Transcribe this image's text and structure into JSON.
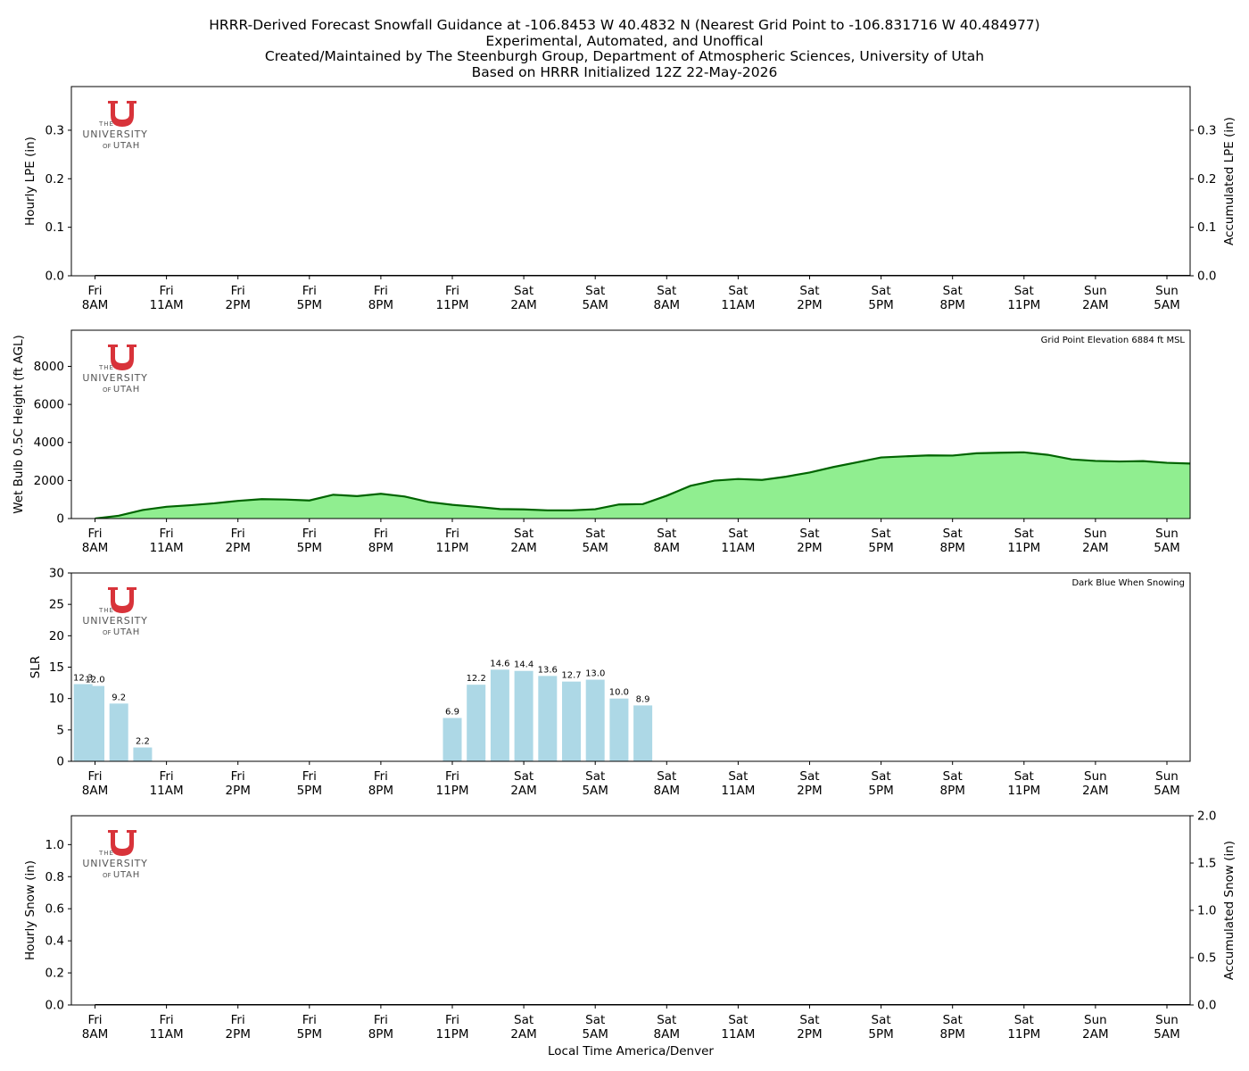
{
  "header": {
    "title_lines": [
      "HRRR-Derived Forecast Snowfall Guidance at -106.8453 W 40.4832 N (Nearest Grid Point to -106.831716 W 40.484977)",
      "Experimental, Automated, and Unoffical",
      "Created/Maintained by The Steenburgh Group, Department of Atmospheric Sciences, University of Utah",
      "Based on HRRR Initialized 12Z 22-May-2026"
    ]
  },
  "logo": {
    "line1": "THE",
    "line2": "UNIVERSITY",
    "line3a": "OF",
    "line3b": "UTAH",
    "color": "#d8333a"
  },
  "x_axis": {
    "xlabel": "Local Time America/Denver",
    "tick_day": [
      "Fri",
      "Fri",
      "Fri",
      "Fri",
      "Fri",
      "Fri",
      "Sat",
      "Sat",
      "Sat",
      "Sat",
      "Sat",
      "Sat",
      "Sat",
      "Sat",
      "Sun",
      "Sun"
    ],
    "tick_time": [
      "8AM",
      "11AM",
      "2PM",
      "5PM",
      "8PM",
      "11PM",
      "2AM",
      "5AM",
      "8AM",
      "11AM",
      "2PM",
      "5PM",
      "8PM",
      "11PM",
      "2AM",
      "5AM"
    ]
  },
  "chart_data": [
    {
      "id": "lpe",
      "type": "bar",
      "ylabel": "Hourly LPE (in)",
      "ylabel_right": "Accumulated LPE (in)",
      "ylim": [
        0,
        0.39
      ],
      "yticks": [
        "0.0",
        "0.1",
        "0.2",
        "0.3"
      ],
      "ylim_right": [
        0,
        0.39
      ],
      "yticks_right": [
        "0.0",
        "0.1",
        "0.2",
        "0.3"
      ],
      "x_hours": [
        0,
        1,
        2,
        3,
        4,
        5,
        6,
        7,
        8,
        9,
        10,
        11,
        12,
        13,
        14,
        15,
        16,
        17,
        18,
        19,
        20,
        21,
        22,
        23,
        24,
        25,
        26,
        27,
        28,
        29,
        30,
        31,
        32,
        33,
        34,
        35,
        36,
        37,
        38,
        39,
        40,
        41,
        42,
        43,
        44,
        45,
        46,
        47
      ],
      "values": [
        0,
        0,
        0,
        0,
        0,
        0,
        0,
        0,
        0,
        0,
        0,
        0,
        0,
        0,
        0,
        0,
        0,
        0,
        0,
        0,
        0,
        0,
        0,
        0,
        0,
        0,
        0,
        0,
        0,
        0,
        0,
        0,
        0,
        0,
        0,
        0,
        0,
        0,
        0,
        0,
        0,
        0,
        0,
        0,
        0,
        0,
        0,
        0
      ],
      "accumulated": [
        0,
        0,
        0,
        0,
        0,
        0,
        0,
        0,
        0,
        0,
        0,
        0,
        0,
        0,
        0,
        0,
        0,
        0,
        0,
        0,
        0,
        0,
        0,
        0,
        0,
        0,
        0,
        0,
        0,
        0,
        0,
        0,
        0,
        0,
        0,
        0,
        0,
        0,
        0,
        0,
        0,
        0,
        0,
        0,
        0,
        0,
        0,
        0
      ]
    },
    {
      "id": "wetbulb",
      "type": "area",
      "ylabel": "Wet Bulb 0.5C Height (ft AGL)",
      "annotation": "Grid Point Elevation 6884 ft MSL",
      "ylim": [
        0,
        9900
      ],
      "yticks": [
        "0",
        "2000",
        "4000",
        "6000",
        "8000"
      ],
      "x_hours": [
        0,
        1,
        2,
        3,
        4,
        5,
        6,
        7,
        8,
        9,
        10,
        11,
        12,
        13,
        14,
        15,
        16,
        17,
        18,
        19,
        20,
        21,
        22,
        23,
        24,
        25,
        26,
        27,
        28,
        29,
        30,
        31,
        32,
        33,
        34,
        35,
        36,
        37,
        38,
        39,
        40,
        41,
        42,
        43,
        44,
        45,
        46,
        47
      ],
      "values": [
        0,
        150,
        450,
        620,
        700,
        800,
        930,
        1020,
        1000,
        950,
        1250,
        1180,
        1300,
        1160,
        870,
        720,
        620,
        500,
        480,
        430,
        430,
        490,
        740,
        760,
        1200,
        1720,
        1990,
        2080,
        2030,
        2200,
        2420,
        2710,
        2960,
        3210,
        3270,
        3320,
        3310,
        3430,
        3460,
        3480,
        3350,
        3110,
        3030,
        3000,
        3020,
        2930,
        2890,
        2880
      ],
      "fill_color": "#90ee90",
      "line_color": "#006400"
    },
    {
      "id": "slr",
      "type": "bar",
      "ylabel": "SLR",
      "annotation": "Dark Blue When Snowing",
      "ylim": [
        0,
        30
      ],
      "yticks": [
        "0",
        "5",
        "10",
        "15",
        "20",
        "25",
        "30"
      ],
      "bar_color": "#add8e6",
      "bars": [
        {
          "x": -0.5,
          "value": 12.3,
          "label": "12.3"
        },
        {
          "x": 0,
          "value": 12.0,
          "label": "12.0"
        },
        {
          "x": 1,
          "value": 9.2,
          "label": "9.2"
        },
        {
          "x": 2,
          "value": 2.2,
          "label": "2.2"
        },
        {
          "x": 15,
          "value": 6.9,
          "label": "6.9"
        },
        {
          "x": 16,
          "value": 12.2,
          "label": "12.2"
        },
        {
          "x": 17,
          "value": 14.6,
          "label": "14.6"
        },
        {
          "x": 18,
          "value": 14.4,
          "label": "14.4"
        },
        {
          "x": 19,
          "value": 13.6,
          "label": "13.6"
        },
        {
          "x": 20,
          "value": 12.7,
          "label": "12.7"
        },
        {
          "x": 21,
          "value": 13.0,
          "label": "13.0"
        },
        {
          "x": 22,
          "value": 10.0,
          "label": "10.0"
        },
        {
          "x": 23,
          "value": 8.9,
          "label": "8.9"
        }
      ]
    },
    {
      "id": "snow",
      "type": "bar",
      "ylabel": "Hourly Snow (in)",
      "ylabel_right": "Accumulated Snow (in)",
      "ylim": [
        0,
        1.18
      ],
      "yticks": [
        "0.0",
        "0.2",
        "0.4",
        "0.6",
        "0.8",
        "1.0"
      ],
      "ylim_right": [
        0,
        2.0
      ],
      "yticks_right": [
        "0.0",
        "0.5",
        "1.0",
        "1.5",
        "2.0"
      ],
      "x_hours": [
        0,
        1,
        2,
        3,
        4,
        5,
        6,
        7,
        8,
        9,
        10,
        11,
        12,
        13,
        14,
        15,
        16,
        17,
        18,
        19,
        20,
        21,
        22,
        23,
        24,
        25,
        26,
        27,
        28,
        29,
        30,
        31,
        32,
        33,
        34,
        35,
        36,
        37,
        38,
        39,
        40,
        41,
        42,
        43,
        44,
        45,
        46,
        47
      ],
      "values": [
        0,
        0,
        0,
        0,
        0,
        0,
        0,
        0,
        0,
        0,
        0,
        0,
        0,
        0,
        0,
        0,
        0,
        0,
        0,
        0,
        0,
        0,
        0,
        0,
        0,
        0,
        0,
        0,
        0,
        0,
        0,
        0,
        0,
        0,
        0,
        0,
        0,
        0,
        0,
        0,
        0,
        0,
        0,
        0,
        0,
        0,
        0,
        0
      ],
      "accumulated": [
        0,
        0,
        0,
        0,
        0,
        0,
        0,
        0,
        0,
        0,
        0,
        0,
        0,
        0,
        0,
        0,
        0,
        0,
        0,
        0,
        0,
        0,
        0,
        0,
        0,
        0,
        0,
        0,
        0,
        0,
        0,
        0,
        0,
        0,
        0,
        0,
        0,
        0,
        0,
        0,
        0,
        0,
        0,
        0,
        0,
        0,
        0,
        0
      ]
    }
  ]
}
